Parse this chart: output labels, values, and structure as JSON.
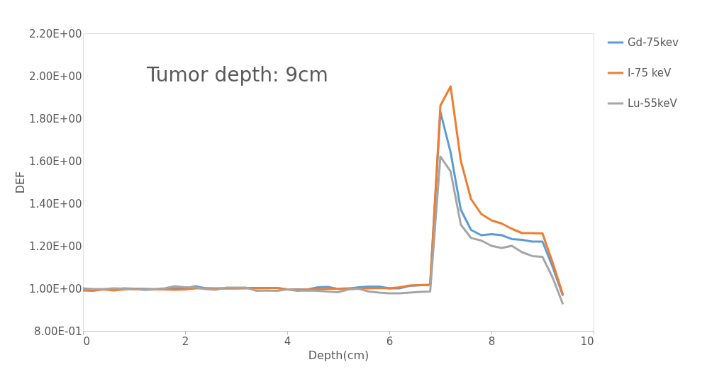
{
  "chart_data": {
    "type": "line",
    "xlabel": "Depth(cm)",
    "ylabel": "DEF",
    "annotations": [
      "Tumor depth: 9cm"
    ],
    "x": [
      0,
      0.2,
      0.4,
      0.6,
      0.8,
      1.0,
      1.2,
      1.4,
      1.6,
      1.8,
      2.0,
      2.2,
      2.4,
      2.6,
      2.8,
      3.0,
      3.2,
      3.4,
      3.6,
      3.8,
      4.0,
      4.2,
      4.4,
      4.6,
      4.8,
      5.0,
      5.2,
      5.4,
      5.6,
      5.8,
      6.0,
      6.2,
      6.4,
      6.6,
      6.8,
      7.0,
      7.2,
      7.4,
      7.6,
      7.8,
      8.0,
      8.2,
      8.4,
      8.6,
      8.8,
      9.0,
      9.2,
      9.4
    ],
    "series": [
      {
        "name": "Gd-75kev",
        "color": "#5b9bd5",
        "values": [
          1.0,
          0.995,
          0.995,
          0.995,
          1.0,
          0.998,
          0.993,
          0.995,
          0.997,
          1.0,
          1.0,
          1.01,
          1.0,
          1.0,
          1.0,
          1.0,
          1.002,
          1.002,
          1.002,
          1.002,
          0.995,
          0.995,
          0.995,
          1.005,
          1.007,
          0.997,
          0.998,
          1.005,
          1.008,
          1.008,
          1.0,
          1.0,
          1.012,
          1.015,
          1.017,
          1.83,
          1.64,
          1.37,
          1.275,
          1.25,
          1.255,
          1.25,
          1.232,
          1.228,
          1.22,
          1.22,
          1.1,
          0.965
        ]
      },
      {
        "name": "I-75 keV",
        "color": "#ed7d31",
        "values": [
          0.99,
          0.988,
          0.995,
          0.99,
          0.995,
          0.998,
          0.998,
          0.995,
          0.995,
          0.993,
          0.995,
          1.0,
          1.0,
          0.998,
          1.0,
          1.0,
          1.0,
          1.0,
          1.002,
          1.002,
          0.995,
          0.993,
          0.995,
          0.995,
          0.998,
          0.998,
          1.0,
          1.0,
          1.0,
          1.002,
          1.0,
          1.005,
          1.013,
          1.015,
          1.017,
          1.86,
          1.95,
          1.6,
          1.42,
          1.35,
          1.32,
          1.305,
          1.28,
          1.26,
          1.26,
          1.258,
          1.12,
          0.97
        ]
      },
      {
        "name": "Lu-55keV",
        "color": "#a5a5a5",
        "values": [
          0.997,
          0.997,
          0.997,
          1.0,
          0.998,
          0.995,
          0.997,
          0.997,
          1.0,
          1.01,
          1.005,
          1.005,
          0.997,
          0.993,
          1.003,
          1.003,
          1.003,
          0.988,
          0.99,
          0.988,
          0.995,
          0.988,
          0.99,
          0.988,
          0.985,
          0.982,
          0.995,
          0.998,
          0.985,
          0.98,
          0.977,
          0.977,
          0.98,
          0.983,
          0.985,
          1.62,
          1.55,
          1.3,
          1.237,
          1.225,
          1.2,
          1.19,
          1.2,
          1.17,
          1.152,
          1.148,
          1.05,
          0.925
        ]
      }
    ],
    "xlim": [
      0,
      10
    ],
    "xticks": [
      0,
      2,
      4,
      6,
      8,
      10
    ],
    "ylim": [
      0.8,
      2.2
    ],
    "yticks": [
      {
        "value": 0.8,
        "label": "8.00E-01"
      },
      {
        "value": 1.0,
        "label": "1.00E+00"
      },
      {
        "value": 1.2,
        "label": "1.20E+00"
      },
      {
        "value": 1.4,
        "label": "1.40E+00"
      },
      {
        "value": 1.6,
        "label": "1.60E+00"
      },
      {
        "value": 1.8,
        "label": "1.80E+00"
      },
      {
        "value": 2.0,
        "label": "2.00E+00"
      },
      {
        "value": 2.2,
        "label": "2.20E+00"
      }
    ],
    "grid": false,
    "legend": "right",
    "marker": "none",
    "line_style": "solid"
  }
}
